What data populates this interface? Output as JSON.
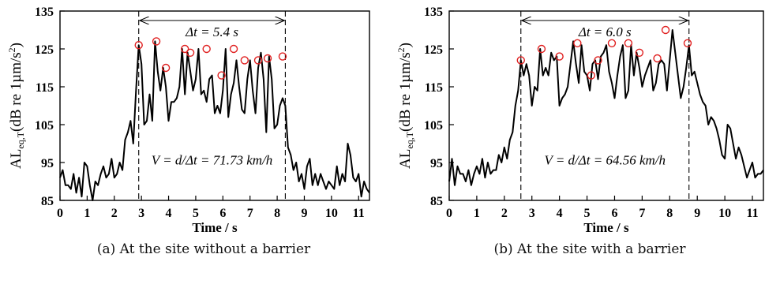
{
  "chart_data": [
    {
      "type": "line",
      "caption": "(a) At the site without a barrier",
      "xlabel": "Time / s",
      "ylabel_main": "AL",
      "ylabel_sub": "eq,T",
      "ylabel_rest": "(dB re 1µm/s",
      "ylabel_sup": "2",
      "ylabel_end": ")",
      "xlim": [
        0,
        11.4
      ],
      "ylim": [
        85,
        135
      ],
      "xticks": [
        "0",
        "1",
        "2",
        "3",
        "4",
        "5",
        "6",
        "7",
        "8",
        "9",
        "10",
        "11"
      ],
      "yticks": [
        "85",
        "95",
        "105",
        "115",
        "125",
        "135"
      ],
      "vlines": [
        2.9,
        8.3
      ],
      "dt_label": "Δt = 5.4 s",
      "v_label": "V = d/Δt = 71.73 km/h",
      "x": [
        0.0,
        0.1,
        0.2,
        0.3,
        0.4,
        0.5,
        0.6,
        0.7,
        0.8,
        0.9,
        1.0,
        1.1,
        1.2,
        1.3,
        1.4,
        1.5,
        1.6,
        1.7,
        1.8,
        1.9,
        2.0,
        2.1,
        2.2,
        2.3,
        2.4,
        2.5,
        2.6,
        2.7,
        2.8,
        2.9,
        3.0,
        3.1,
        3.2,
        3.3,
        3.4,
        3.5,
        3.6,
        3.7,
        3.8,
        3.9,
        4.0,
        4.1,
        4.2,
        4.3,
        4.4,
        4.5,
        4.6,
        4.7,
        4.8,
        4.9,
        5.0,
        5.1,
        5.2,
        5.3,
        5.4,
        5.5,
        5.6,
        5.7,
        5.8,
        5.9,
        6.0,
        6.1,
        6.2,
        6.3,
        6.4,
        6.5,
        6.6,
        6.7,
        6.8,
        6.9,
        7.0,
        7.1,
        7.2,
        7.3,
        7.4,
        7.5,
        7.6,
        7.7,
        7.8,
        7.9,
        8.0,
        8.1,
        8.2,
        8.3,
        8.4,
        8.5,
        8.6,
        8.7,
        8.8,
        8.9,
        9.0,
        9.1,
        9.2,
        9.3,
        9.4,
        9.5,
        9.6,
        9.7,
        9.8,
        9.9,
        10.0,
        10.1,
        10.2,
        10.3,
        10.4,
        10.5,
        10.6,
        10.7,
        10.8,
        10.9,
        11.0,
        11.1,
        11.2,
        11.3,
        11.4
      ],
      "y": [
        91,
        93,
        89,
        89,
        88,
        92,
        87,
        91,
        86,
        95,
        94,
        89,
        85,
        90,
        89,
        92,
        94,
        91,
        92,
        96,
        91,
        92,
        95,
        93,
        101,
        103,
        106,
        100,
        114,
        126,
        121,
        105,
        106,
        113,
        106,
        127,
        119,
        114,
        120,
        115,
        106,
        111,
        111,
        112,
        115,
        125,
        113,
        124,
        119,
        114,
        117,
        125,
        113,
        114,
        111,
        117,
        118,
        108,
        110,
        108,
        114,
        125,
        107,
        113,
        116,
        122,
        115,
        109,
        108,
        117,
        122,
        114,
        108,
        120,
        124,
        117,
        103,
        123,
        117,
        104,
        105,
        110,
        112,
        110,
        99,
        97,
        93,
        95,
        90,
        92,
        88,
        94,
        96,
        89,
        92,
        89,
        92,
        90,
        88,
        90,
        89,
        88,
        94,
        89,
        92,
        90,
        100,
        97,
        91,
        90,
        92,
        86,
        90,
        88,
        87
      ],
      "circles": [
        [
          2.9,
          126
        ],
        [
          3.55,
          127
        ],
        [
          3.9,
          120
        ],
        [
          4.6,
          125
        ],
        [
          4.8,
          124
        ],
        [
          5.4,
          125
        ],
        [
          5.95,
          118
        ],
        [
          6.4,
          125
        ],
        [
          6.8,
          122
        ],
        [
          7.3,
          122
        ],
        [
          7.65,
          122.5
        ],
        [
          8.2,
          123
        ]
      ]
    },
    {
      "type": "line",
      "caption": "(b) At the site with a barrier",
      "xlabel": "Time / s",
      "ylabel_main": "AL",
      "ylabel_sub": "eq,T",
      "ylabel_rest": "(dB re 1µm/s",
      "ylabel_sup": "2",
      "ylabel_end": ")",
      "xlim": [
        0,
        11.4
      ],
      "ylim": [
        85,
        135
      ],
      "xticks": [
        "0",
        "1",
        "2",
        "3",
        "4",
        "5",
        "6",
        "7",
        "8",
        "9",
        "10",
        "11"
      ],
      "yticks": [
        "85",
        "95",
        "105",
        "115",
        "125",
        "135"
      ],
      "vlines": [
        2.6,
        8.7
      ],
      "dt_label": "Δt = 6.0 s",
      "v_label": "V = d/Δt = 64.56 km/h",
      "x": [
        0.0,
        0.1,
        0.2,
        0.3,
        0.4,
        0.5,
        0.6,
        0.7,
        0.8,
        0.9,
        1.0,
        1.1,
        1.2,
        1.3,
        1.4,
        1.5,
        1.6,
        1.7,
        1.8,
        1.9,
        2.0,
        2.1,
        2.2,
        2.3,
        2.4,
        2.5,
        2.6,
        2.7,
        2.8,
        2.9,
        3.0,
        3.1,
        3.2,
        3.3,
        3.4,
        3.5,
        3.6,
        3.7,
        3.8,
        3.9,
        4.0,
        4.1,
        4.2,
        4.3,
        4.4,
        4.5,
        4.6,
        4.7,
        4.8,
        4.9,
        5.0,
        5.1,
        5.2,
        5.3,
        5.4,
        5.5,
        5.6,
        5.7,
        5.8,
        5.9,
        6.0,
        6.1,
        6.2,
        6.3,
        6.4,
        6.5,
        6.6,
        6.7,
        6.8,
        6.9,
        7.0,
        7.1,
        7.2,
        7.3,
        7.4,
        7.5,
        7.6,
        7.7,
        7.8,
        7.9,
        8.0,
        8.1,
        8.2,
        8.3,
        8.4,
        8.5,
        8.6,
        8.7,
        8.8,
        8.9,
        9.0,
        9.1,
        9.2,
        9.3,
        9.4,
        9.5,
        9.6,
        9.7,
        9.8,
        9.9,
        10.0,
        10.1,
        10.2,
        10.3,
        10.4,
        10.5,
        10.6,
        10.7,
        10.8,
        10.9,
        11.0,
        11.1,
        11.2,
        11.3,
        11.4
      ],
      "y": [
        90,
        96,
        89,
        94,
        92,
        92,
        90,
        93,
        89,
        92,
        94,
        92,
        96,
        91,
        95,
        92,
        93,
        93,
        97,
        95,
        99,
        96,
        101,
        103,
        110,
        114,
        122,
        118,
        121,
        118,
        110,
        115,
        114,
        125,
        118,
        120,
        118,
        124,
        122,
        123,
        110,
        112,
        113,
        115,
        121,
        127,
        121,
        116,
        126,
        119,
        118,
        114,
        121,
        122,
        117,
        123,
        124,
        126,
        119,
        116,
        112,
        118,
        123,
        126,
        112,
        114,
        126,
        118,
        124,
        120,
        115,
        118,
        120,
        122,
        114,
        116,
        121,
        122,
        121,
        114,
        122,
        130,
        124,
        118,
        112,
        115,
        120,
        126,
        118,
        119,
        116,
        113,
        111,
        110,
        105,
        107,
        106,
        104,
        101,
        97,
        96,
        105,
        104,
        100,
        96,
        99,
        97,
        94,
        91,
        93,
        95,
        91,
        92,
        92,
        93
      ],
      "circles": [
        [
          2.6,
          122
        ],
        [
          3.35,
          125
        ],
        [
          4.0,
          123
        ],
        [
          4.65,
          126.5
        ],
        [
          5.15,
          118
        ],
        [
          5.4,
          122
        ],
        [
          5.9,
          126.5
        ],
        [
          6.5,
          126.5
        ],
        [
          6.9,
          124
        ],
        [
          7.55,
          122.5
        ],
        [
          7.85,
          130
        ],
        [
          8.65,
          126.5
        ]
      ]
    }
  ]
}
